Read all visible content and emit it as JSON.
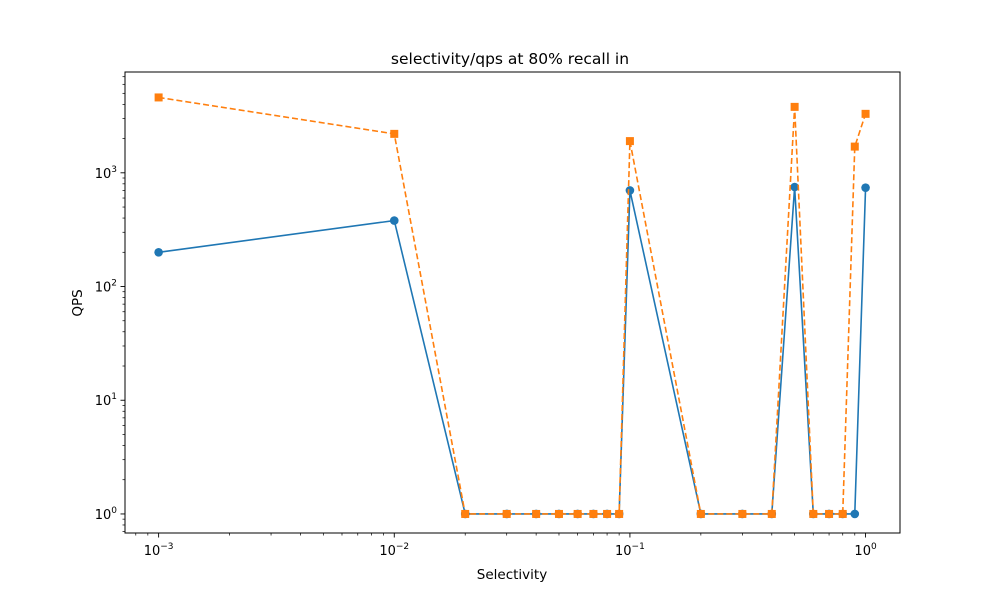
{
  "chart_data": {
    "type": "line",
    "title": "selectivity/qps at 80% recall in",
    "xlabel": "Selectivity",
    "ylabel": "QPS",
    "xscale": "log",
    "yscale": "log",
    "xlim": [
      0.00072,
      1.4
    ],
    "ylim": [
      0.68,
      7700
    ],
    "grid": false,
    "x_ticks": [
      {
        "value": 0.001,
        "base": "10",
        "exp": "−3"
      },
      {
        "value": 0.01,
        "base": "10",
        "exp": "−2"
      },
      {
        "value": 0.1,
        "base": "10",
        "exp": "−1"
      },
      {
        "value": 1,
        "base": "10",
        "exp": "0"
      }
    ],
    "y_ticks": [
      {
        "value": 1,
        "base": "10",
        "exp": "0"
      },
      {
        "value": 10,
        "base": "10",
        "exp": "1"
      },
      {
        "value": 100,
        "base": "10",
        "exp": "2"
      },
      {
        "value": 1000,
        "base": "10",
        "exp": "3"
      }
    ],
    "series": [
      {
        "color": "#1f77b4",
        "linestyle": "solid",
        "marker": "circle",
        "x": [
          0.001,
          0.01,
          0.02,
          0.03,
          0.04,
          0.05,
          0.06,
          0.07,
          0.08,
          0.09,
          0.1,
          0.2,
          0.3,
          0.4,
          0.5,
          0.6,
          0.7,
          0.8,
          0.9,
          1.0
        ],
        "y": [
          200,
          380,
          1,
          1,
          1,
          1,
          1,
          1,
          1,
          1,
          700,
          1,
          1,
          1,
          750,
          1,
          1,
          1,
          1,
          740
        ]
      },
      {
        "color": "#ff7f0e",
        "linestyle": "dashed",
        "marker": "square",
        "x": [
          0.001,
          0.01,
          0.02,
          0.03,
          0.04,
          0.05,
          0.06,
          0.07,
          0.08,
          0.09,
          0.1,
          0.2,
          0.3,
          0.4,
          0.5,
          0.6,
          0.7,
          0.8,
          0.9,
          1.0
        ],
        "y": [
          4600,
          2200,
          1,
          1,
          1,
          1,
          1,
          1,
          1,
          1,
          1900,
          1,
          1,
          1,
          3800,
          1,
          1,
          1,
          1700,
          3300
        ]
      }
    ]
  }
}
